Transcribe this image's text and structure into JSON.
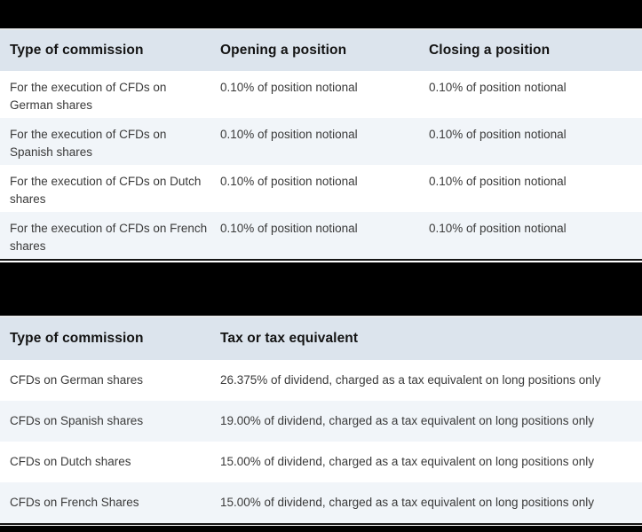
{
  "colors": {
    "band": "#000000",
    "header_bg": "#dce4ed",
    "row_bg": "#ffffff",
    "row_alt_bg": "#f1f5f9",
    "header_text": "#131313",
    "body_text": "#3a3a3a",
    "table_bottom_border": "#161616",
    "separator_line": "#e7e9ea"
  },
  "commission_table": {
    "columns": {
      "type": "Type of commission",
      "opening": "Opening a position",
      "closing": "Closing a position"
    },
    "rows": [
      {
        "type": "For the execution of CFDs on German shares",
        "type_lines": [
          "For the execution of CFDs on",
          "German shares"
        ],
        "opening": "0.10% of position notional",
        "closing": "0.10% of position notional"
      },
      {
        "type": "For the execution of CFDs on Spanish shares",
        "type_lines": [
          "For the execution of CFDs on",
          "Spanish shares"
        ],
        "opening": "0.10% of position notional",
        "closing": "0.10% of position notional"
      },
      {
        "type": "For the execution of CFDs on Dutch shares",
        "type_lines": [
          "For the execution of CFDs on Dutch",
          "shares"
        ],
        "opening": "0.10% of position notional",
        "closing": "0.10% of position notional"
      },
      {
        "type": "For the execution of CFDs on French shares",
        "type_lines": [
          "For the execution of CFDs on French",
          "shares"
        ],
        "opening": "0.10% of position notional",
        "closing": "0.10% of position notional"
      }
    ]
  },
  "tax_table": {
    "columns": {
      "type": "Type of commission",
      "tax": "Tax or tax equivalent"
    },
    "rows": [
      {
        "type": "CFDs on German shares",
        "tax": "26.375% of dividend, charged as a tax equivalent on long positions only"
      },
      {
        "type": "CFDs on Spanish shares",
        "tax": "19.00% of dividend, charged as a tax equivalent on long positions only"
      },
      {
        "type": "CFDs on Dutch shares",
        "tax": "15.00% of dividend, charged as a tax equivalent on long positions only"
      },
      {
        "type": "CFDs on French Shares",
        "tax": "15.00% of dividend, charged as a tax equivalent on long positions only"
      }
    ]
  }
}
